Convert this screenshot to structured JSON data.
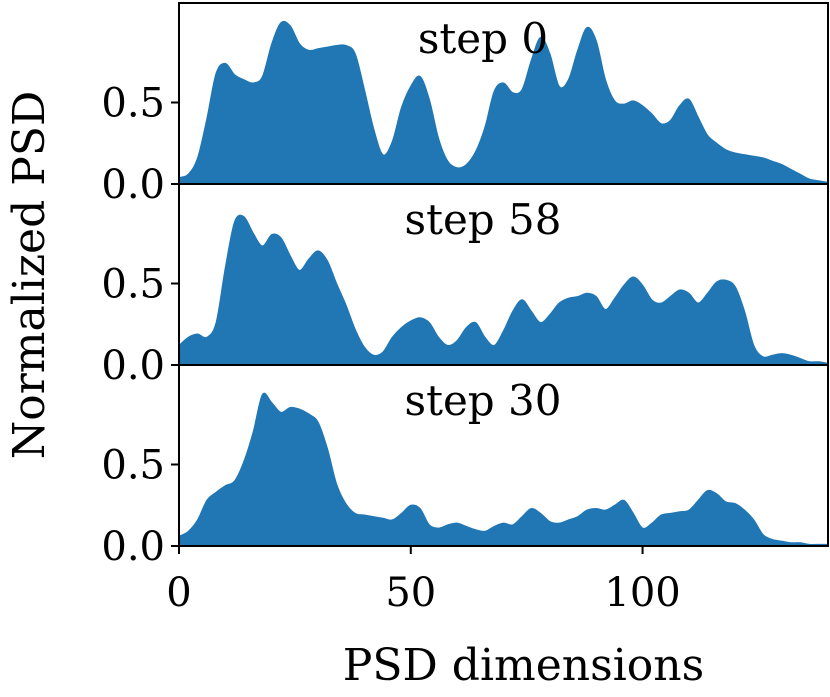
{
  "colors": {
    "fill": "#2077b4",
    "axis": "#000000",
    "background": "#ffffff"
  },
  "chart_data": {
    "type": "area",
    "xlabel": "PSD dimensions",
    "ylabel": "Normalized PSD",
    "xlim": [
      0,
      140
    ],
    "ylim": [
      0,
      1.0
    ],
    "xticks": [
      0,
      50,
      100
    ],
    "xtick_labels": [
      "0",
      "50",
      "100"
    ],
    "yticks": [
      0.0,
      0.5
    ],
    "ytick_labels": [
      "0.0",
      "0.5"
    ],
    "panels": [
      {
        "title": "step 0",
        "x": [
          0,
          2,
          4,
          6,
          8,
          10,
          12,
          14,
          16,
          18,
          20,
          22,
          24,
          26,
          28,
          30,
          32,
          34,
          36,
          38,
          40,
          42,
          44,
          46,
          48,
          50,
          52,
          54,
          56,
          58,
          60,
          62,
          64,
          66,
          68,
          70,
          72,
          74,
          76,
          78,
          80,
          82,
          84,
          86,
          88,
          90,
          92,
          94,
          96,
          98,
          100,
          102,
          104,
          106,
          108,
          110,
          112,
          114,
          116,
          118,
          120,
          122,
          124,
          126,
          128,
          130,
          132,
          134,
          136,
          138,
          140
        ],
        "y": [
          0.04,
          0.06,
          0.16,
          0.4,
          0.68,
          0.74,
          0.67,
          0.64,
          0.62,
          0.66,
          0.86,
          0.99,
          0.97,
          0.86,
          0.82,
          0.83,
          0.84,
          0.85,
          0.85,
          0.8,
          0.58,
          0.34,
          0.18,
          0.26,
          0.47,
          0.6,
          0.66,
          0.52,
          0.28,
          0.14,
          0.1,
          0.12,
          0.2,
          0.35,
          0.57,
          0.62,
          0.56,
          0.58,
          0.76,
          0.9,
          0.8,
          0.6,
          0.64,
          0.82,
          0.96,
          0.88,
          0.64,
          0.51,
          0.49,
          0.51,
          0.48,
          0.43,
          0.37,
          0.39,
          0.48,
          0.52,
          0.41,
          0.3,
          0.25,
          0.21,
          0.19,
          0.18,
          0.17,
          0.16,
          0.14,
          0.12,
          0.09,
          0.06,
          0.03,
          0.02,
          0.01
        ]
      },
      {
        "title": "step 58",
        "x": [
          0,
          2,
          4,
          6,
          8,
          10,
          12,
          14,
          16,
          18,
          20,
          22,
          24,
          26,
          28,
          30,
          32,
          34,
          36,
          38,
          40,
          42,
          44,
          46,
          48,
          50,
          52,
          54,
          56,
          58,
          60,
          62,
          64,
          66,
          68,
          70,
          72,
          74,
          76,
          78,
          80,
          82,
          84,
          86,
          88,
          90,
          92,
          94,
          96,
          98,
          100,
          102,
          104,
          106,
          108,
          110,
          112,
          114,
          116,
          118,
          120,
          122,
          124,
          126,
          128,
          130,
          132,
          134,
          136,
          138,
          140
        ],
        "y": [
          0.12,
          0.17,
          0.19,
          0.17,
          0.26,
          0.6,
          0.88,
          0.91,
          0.81,
          0.73,
          0.8,
          0.78,
          0.67,
          0.58,
          0.65,
          0.7,
          0.64,
          0.5,
          0.37,
          0.22,
          0.11,
          0.06,
          0.08,
          0.17,
          0.23,
          0.27,
          0.29,
          0.26,
          0.17,
          0.12,
          0.15,
          0.23,
          0.26,
          0.17,
          0.12,
          0.21,
          0.33,
          0.4,
          0.33,
          0.26,
          0.31,
          0.38,
          0.41,
          0.42,
          0.44,
          0.42,
          0.34,
          0.41,
          0.49,
          0.54,
          0.49,
          0.4,
          0.38,
          0.42,
          0.46,
          0.44,
          0.38,
          0.44,
          0.51,
          0.52,
          0.48,
          0.33,
          0.12,
          0.05,
          0.06,
          0.07,
          0.06,
          0.04,
          0.02,
          0.02,
          0.01
        ]
      },
      {
        "title": "step 30",
        "x": [
          0,
          2,
          4,
          6,
          8,
          10,
          12,
          14,
          16,
          18,
          20,
          22,
          24,
          26,
          28,
          30,
          32,
          34,
          36,
          38,
          40,
          42,
          44,
          46,
          48,
          50,
          52,
          54,
          56,
          58,
          60,
          62,
          64,
          66,
          68,
          70,
          72,
          74,
          76,
          78,
          80,
          82,
          84,
          86,
          88,
          90,
          92,
          94,
          96,
          98,
          100,
          102,
          104,
          106,
          108,
          110,
          112,
          114,
          116,
          118,
          120,
          122,
          124,
          126,
          128,
          130,
          132,
          134,
          136,
          138,
          140
        ],
        "y": [
          0.06,
          0.09,
          0.16,
          0.28,
          0.33,
          0.37,
          0.4,
          0.52,
          0.7,
          0.93,
          0.88,
          0.82,
          0.85,
          0.84,
          0.81,
          0.76,
          0.6,
          0.38,
          0.26,
          0.2,
          0.19,
          0.18,
          0.17,
          0.16,
          0.2,
          0.25,
          0.23,
          0.13,
          0.11,
          0.13,
          0.14,
          0.12,
          0.1,
          0.09,
          0.12,
          0.14,
          0.13,
          0.18,
          0.23,
          0.2,
          0.15,
          0.14,
          0.16,
          0.18,
          0.22,
          0.23,
          0.22,
          0.25,
          0.28,
          0.2,
          0.11,
          0.14,
          0.19,
          0.2,
          0.21,
          0.22,
          0.28,
          0.34,
          0.32,
          0.27,
          0.26,
          0.22,
          0.16,
          0.07,
          0.04,
          0.03,
          0.02,
          0.02,
          0.01,
          0.01,
          0.01
        ]
      }
    ]
  }
}
